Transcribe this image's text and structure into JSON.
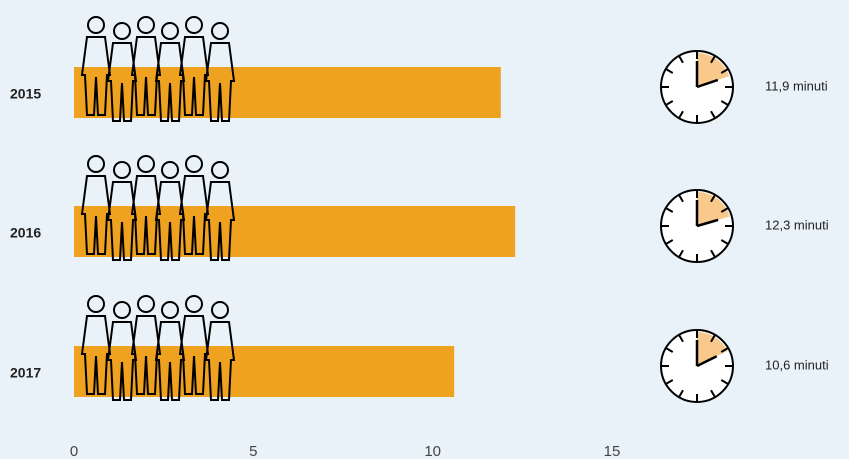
{
  "chart_data": {
    "type": "bar",
    "orientation": "horizontal",
    "categories": [
      "2015",
      "2016",
      "2017"
    ],
    "values": [
      11.9,
      12.3,
      10.6
    ],
    "value_labels": [
      "11,9 minuti",
      "12,3 minuti",
      "10,6 minuti"
    ],
    "color": "#eea21f",
    "xlim": [
      0,
      15
    ],
    "xticks": [
      0,
      5,
      10,
      15
    ],
    "grid": false
  }
}
